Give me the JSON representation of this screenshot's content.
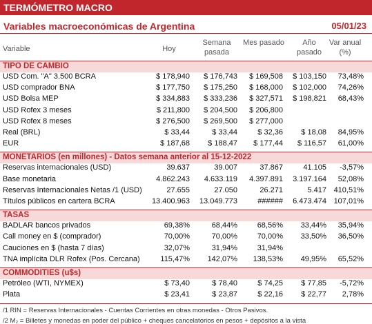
{
  "header": {
    "title": "TERMÓMETRO MACRO",
    "subtitle": "Variables macroeconómicas de Argentina",
    "date": "05/01/23"
  },
  "columns": [
    "Variable",
    "Hoy",
    "Semana pasada",
    "Mes pasado",
    "Año pasado",
    "Var anual (%)"
  ],
  "sections": [
    {
      "title": "TIPO DE CAMBIO",
      "rows": [
        [
          "USD Com. \"A\" 3.500 BCRA",
          "$ 178,940",
          "$ 176,743",
          "$ 169,508",
          "$ 103,150",
          "73,48%"
        ],
        [
          "USD comprador BNA",
          "$ 177,750",
          "$ 175,250",
          "$ 168,000",
          "$ 102,000",
          "74,26%"
        ],
        [
          "USD Bolsa MEP",
          "$ 334,883",
          "$ 333,236",
          "$ 327,571",
          "$ 198,821",
          "68,43%"
        ],
        [
          "USD Rofex 3 meses",
          "$ 211,800",
          "$ 204,500",
          "$ 206,800",
          null,
          null
        ],
        [
          "USD Rofex 8 meses",
          "$ 276,500",
          "$ 269,500",
          "$ 277,000",
          null,
          null
        ],
        [
          "Real (BRL)",
          "$ 33,44",
          "$ 33,44",
          "$ 32,36",
          "$ 18,08",
          "84,95%"
        ],
        [
          "EUR",
          "$ 187,68",
          "$ 188,47",
          "$ 177,44",
          "$ 116,57",
          "61,00%"
        ]
      ]
    },
    {
      "title": "MONETARIOS (en millones) - Datos semana anterior al 15-12-2022",
      "rows": [
        [
          "Reservas internacionales (USD)",
          "39.637",
          "39.007",
          "37.867",
          "41.105",
          "-3,57%"
        ],
        [
          "Base monetaria",
          "4.862.243",
          "4.633.119",
          "4.397.891",
          "3.197.164",
          "52,08%"
        ],
        [
          "Reservas Internacionales Netas /1 (USD)",
          "27.655",
          "27.050",
          "26.271",
          "5.417",
          "410,51%"
        ],
        [
          "Títulos públicos en cartera BCRA",
          "13.400.963",
          "13.049.773",
          "######",
          "6.473.474",
          "107,01%"
        ]
      ]
    },
    {
      "title": "TASAS",
      "rows": [
        [
          "BADLAR bancos privados",
          "69,38%",
          "68,44%",
          "68,56%",
          "33,44%",
          "35,94%"
        ],
        [
          "Call money en $ (comprador)",
          "70,00%",
          "70,00%",
          "70,00%",
          "33,50%",
          "36,50%"
        ],
        [
          "Cauciones en $ (hasta 7 días)",
          "32,07%",
          "31,94%",
          "31,94%",
          null,
          null
        ],
        [
          "TNA implícita DLR Rofex (Pos. Cercana)",
          "115,47%",
          "142,07%",
          "138,53%",
          "49,95%",
          "65,52%"
        ]
      ]
    },
    {
      "title": "COMMODITIES (u$s)",
      "rows": [
        [
          "Petróleo (WTI, NYMEX)",
          "$ 73,40",
          "$ 78,40",
          "$ 74,25",
          "$ 77,85",
          "-5,72%"
        ],
        [
          "Plata",
          "$ 23,41",
          "$ 23,87",
          "$ 22,16",
          "$ 22,77",
          "2,78%"
        ]
      ]
    }
  ],
  "footnotes": [
    "/1 RIN = Reservas Internacionales - Cuentas Corrientes en otras monedas - Otros Pasivos.",
    "/2 M₂ = Billetes y monedas en poder del público + cheques cancelatorios en pesos + depósitos a la vista"
  ]
}
